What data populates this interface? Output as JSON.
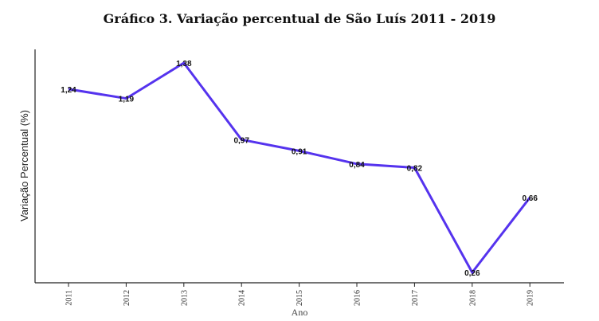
{
  "chart_data": {
    "type": "line",
    "title": "Gráfico 3. Variação percentual de São Luís 2011 - 2019",
    "xlabel": "Ano",
    "ylabel": "Variação Percentual (%)",
    "categories": [
      "2011",
      "2012",
      "2013",
      "2014",
      "2015",
      "2016",
      "2017",
      "2018",
      "2019"
    ],
    "values": [
      1.24,
      1.19,
      1.38,
      0.97,
      0.91,
      0.84,
      0.82,
      0.26,
      0.66
    ],
    "data_labels": [
      "1,24",
      "1,19",
      "1,38",
      "0,97",
      "0,91",
      "0,84",
      "0,82",
      "0,26",
      "0,66"
    ],
    "line_color": "#5533ee",
    "grid": false
  }
}
